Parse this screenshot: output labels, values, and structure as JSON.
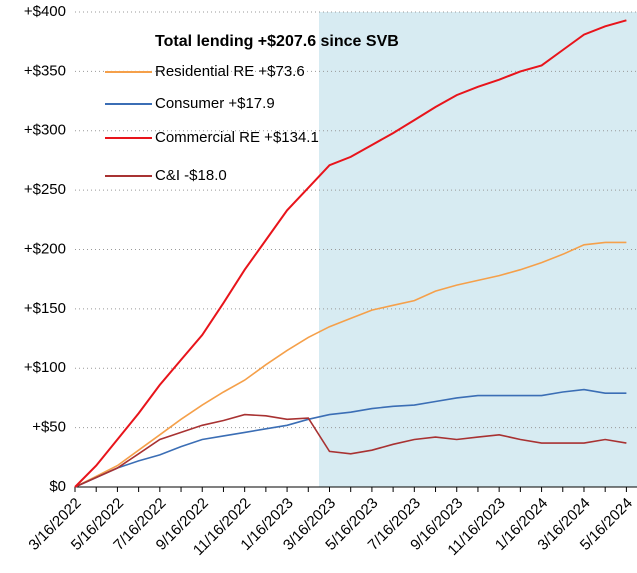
{
  "chart_data": {
    "type": "line",
    "legend_title": "Total lending +$207.6 since SVB",
    "categories": [
      "3/16/2022",
      null,
      "5/16/2022",
      null,
      "7/16/2022",
      null,
      "9/16/2022",
      null,
      "11/16/2022",
      null,
      "1/16/2023",
      null,
      "3/16/2023",
      null,
      "5/16/2023",
      null,
      "7/16/2023",
      null,
      "9/16/2023",
      null,
      "11/16/2023",
      null,
      "1/16/2024",
      null,
      "3/16/2024",
      null,
      "5/16/2024"
    ],
    "series": [
      {
        "name": "Residential RE +$73.6",
        "color": "#f5a04a",
        "values": [
          0,
          9,
          18,
          31,
          44,
          57,
          69,
          80,
          90,
          103,
          115,
          126,
          135,
          142,
          149,
          153,
          157,
          165,
          170,
          174,
          178,
          183,
          189,
          196,
          204,
          206,
          206
        ]
      },
      {
        "name": "Consumer +$17.9",
        "color": "#3b6eb5",
        "values": [
          0,
          8,
          16,
          22,
          27,
          34,
          40,
          43,
          46,
          49,
          52,
          57,
          61,
          63,
          66,
          68,
          69,
          72,
          75,
          77,
          77,
          77,
          77,
          80,
          82,
          79,
          79
        ]
      },
      {
        "name": "Commercial RE +$134.1",
        "color": "#e8141b",
        "values": [
          0,
          18,
          40,
          62,
          86,
          107,
          128,
          155,
          183,
          208,
          233,
          252,
          271,
          278,
          288,
          298,
          309,
          320,
          330,
          337,
          343,
          350,
          355,
          368,
          381,
          388,
          393
        ]
      },
      {
        "name": "C&I -$18.0",
        "color": "#a83232",
        "values": [
          0,
          8,
          16,
          28,
          40,
          46,
          52,
          56,
          61,
          60,
          57,
          58,
          30,
          28,
          31,
          36,
          40,
          42,
          40,
          42,
          44,
          40,
          37,
          37,
          37,
          40,
          37
        ]
      }
    ],
    "ylim": [
      0,
      400
    ],
    "yticks": [
      {
        "value": 0,
        "label": "$0"
      },
      {
        "value": 50,
        "label": "+$50"
      },
      {
        "value": 100,
        "label": "+$100"
      },
      {
        "value": 150,
        "label": "+$150"
      },
      {
        "value": 200,
        "label": "+$200"
      },
      {
        "value": 250,
        "label": "+$250"
      },
      {
        "value": 300,
        "label": "+$300"
      },
      {
        "value": 350,
        "label": "+$350"
      },
      {
        "value": 400,
        "label": "+$400"
      }
    ],
    "grid": true
  }
}
